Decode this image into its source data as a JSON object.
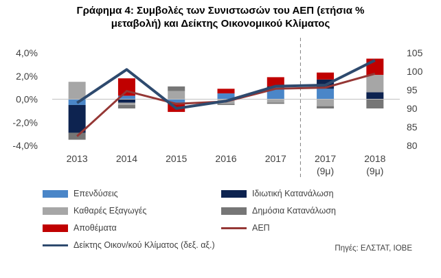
{
  "title_line1": "Γράφημα 4: Συμβολές των Συνιστωσών του ΑΕΠ (ετήσια %",
  "title_line2": "μεταβολή) και Δείκτης Οικονομικού  Κλίματος",
  "source": "Πηγές: ΕΛΣΤΑΤ,  ΙΟΒΕ",
  "chart_data": {
    "type": "bar",
    "stacked": true,
    "categories": [
      {
        "line1": "2013",
        "line2": ""
      },
      {
        "line1": "2014",
        "line2": ""
      },
      {
        "line1": "2015",
        "line2": ""
      },
      {
        "line1": "2016",
        "line2": ""
      },
      {
        "line1": "2017",
        "line2": ""
      },
      {
        "line1": "2017",
        "line2": "(9μ)"
      },
      {
        "line1": "2018",
        "line2": "(9μ)"
      }
    ],
    "y_left": {
      "min": -4,
      "max": 4,
      "ticks": [
        "4,0%",
        "2,0%",
        "0,0%",
        "-2,0%",
        "-4,0%"
      ]
    },
    "y_right": {
      "min": 80,
      "max": 105,
      "ticks": [
        "105",
        "100",
        "95",
        "90",
        "85",
        "80"
      ]
    },
    "grid": false,
    "vertical_divider": "between 2017 and 2017 (9μ), dashed",
    "series": [
      {
        "name": "Επενδύσεις",
        "color": "#4a86c8",
        "values": [
          -0.5,
          0.3,
          -0.3,
          0.5,
          1.0,
          0.9,
          0.0
        ]
      },
      {
        "name": "Ιδιωτική Κατανάλωση",
        "color": "#0d2350",
        "values": [
          -2.4,
          -0.3,
          0.0,
          0.0,
          0.1,
          0.8,
          0.6
        ]
      },
      {
        "name": "Καθαρές Εξαγωγές",
        "color": "#a6a6a6",
        "values": [
          1.5,
          -0.2,
          0.7,
          -0.4,
          -0.3,
          -0.6,
          1.5
        ]
      },
      {
        "name": "Δημόσια Κατανάλωση",
        "color": "#767676",
        "values": [
          -0.6,
          -0.3,
          0.4,
          -0.1,
          -0.1,
          -0.2,
          -0.8
        ]
      },
      {
        "name": "Αποθέματα",
        "color": "#c00000",
        "values": [
          0.0,
          1.5,
          -0.8,
          0.4,
          0.8,
          0.6,
          1.4
        ]
      }
    ],
    "lines": [
      {
        "name": "ΑΕΠ",
        "axis": "left",
        "color": "#953735",
        "values": [
          -3.2,
          0.7,
          -0.4,
          -0.2,
          0.9,
          1.0,
          2.2
        ]
      },
      {
        "name": "Δείκτης Οικον/κού Κλίματος (δεξ. αξ.)",
        "axis": "right",
        "color": "#2e4a6e",
        "values": [
          91.5,
          100.5,
          90.0,
          92.0,
          96.0,
          96.3,
          103.0
        ]
      }
    ]
  }
}
